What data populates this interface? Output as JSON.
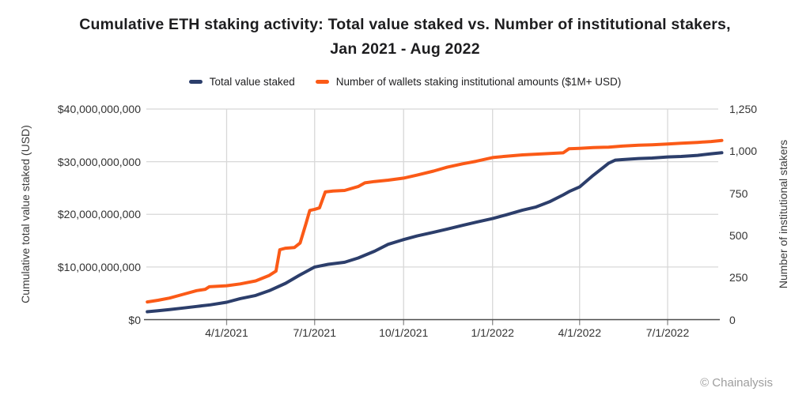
{
  "title": {
    "line1": "Cumulative ETH staking activity: Total value staked vs. Number of institutional stakers,",
    "line2": "Jan 2021 - Aug 2022"
  },
  "legend": {
    "items": [
      {
        "label": "Total value staked",
        "color": "#2c3e6b"
      },
      {
        "label": "Number of wallets staking institutional amounts ($1M+ USD)",
        "color": "#fb5a17"
      }
    ]
  },
  "axes": {
    "left": {
      "title": "Cumulative total value staked (USD)",
      "ticks": [
        {
          "label": "$0",
          "value": 0
        },
        {
          "label": "$10,000,000,000",
          "value": 10000000000
        },
        {
          "label": "$20,000,000,000",
          "value": 20000000000
        },
        {
          "label": "$30,000,000,000",
          "value": 30000000000
        },
        {
          "label": "$40,000,000,000",
          "value": 40000000000
        }
      ]
    },
    "right": {
      "title": "Number of institutional stakers",
      "ticks": [
        {
          "label": "0",
          "value": 0
        },
        {
          "label": "250",
          "value": 250
        },
        {
          "label": "500",
          "value": 500
        },
        {
          "label": "750",
          "value": 750
        },
        {
          "label": "1,000",
          "value": 1000
        },
        {
          "label": "1,250",
          "value": 1250
        }
      ]
    },
    "x": {
      "ticks": [
        {
          "label": "4/1/2021",
          "date": "2021-04-01"
        },
        {
          "label": "7/1/2021",
          "date": "2021-07-01"
        },
        {
          "label": "10/1/2021",
          "date": "2021-10-01"
        },
        {
          "label": "1/1/2022",
          "date": "2022-01-01"
        },
        {
          "label": "4/1/2022",
          "date": "2022-04-01"
        },
        {
          "label": "7/1/2022",
          "date": "2022-07-01"
        }
      ]
    }
  },
  "footer": {
    "attribution": "© Chainalysis"
  },
  "colors": {
    "grid": "#d8d8d8",
    "axis_line": "#4d4d4d",
    "tick_mark": "#8c8c8c"
  },
  "chart_data": {
    "type": "line",
    "title": "Cumulative ETH staking activity: Total value staked vs. Number of institutional stakers, Jan 2021 - Aug 2022",
    "legend_position": "top",
    "grid": true,
    "x_range": [
      "2021-01-09",
      "2022-08-26"
    ],
    "x_tick_labels": [
      "4/1/2021",
      "7/1/2021",
      "10/1/2021",
      "1/1/2022",
      "4/1/2022",
      "7/1/2022"
    ],
    "y_left": {
      "label": "Cumulative total value staked (USD)",
      "range": [
        0,
        40000000000
      ],
      "tick_step": 10000000000
    },
    "y_right": {
      "label": "Number of institutional stakers",
      "range": [
        0,
        1250
      ],
      "tick_step": 250
    },
    "series": [
      {
        "name": "Total value staked",
        "axis": "left",
        "color": "#2c3e6b",
        "units": "USD",
        "points": [
          [
            "2021-01-09",
            1500000000
          ],
          [
            "2021-01-20",
            1700000000
          ],
          [
            "2021-02-01",
            1900000000
          ],
          [
            "2021-02-15",
            2200000000
          ],
          [
            "2021-03-01",
            2500000000
          ],
          [
            "2021-03-15",
            2800000000
          ],
          [
            "2021-04-01",
            3300000000
          ],
          [
            "2021-04-15",
            4000000000
          ],
          [
            "2021-05-01",
            4600000000
          ],
          [
            "2021-05-15",
            5500000000
          ],
          [
            "2021-06-01",
            6900000000
          ],
          [
            "2021-06-15",
            8400000000
          ],
          [
            "2021-07-01",
            10000000000
          ],
          [
            "2021-07-15",
            10500000000
          ],
          [
            "2021-08-01",
            10900000000
          ],
          [
            "2021-08-15",
            11700000000
          ],
          [
            "2021-09-01",
            13000000000
          ],
          [
            "2021-09-15",
            14300000000
          ],
          [
            "2021-10-01",
            15200000000
          ],
          [
            "2021-10-15",
            15900000000
          ],
          [
            "2021-11-01",
            16600000000
          ],
          [
            "2021-11-15",
            17200000000
          ],
          [
            "2021-12-01",
            17900000000
          ],
          [
            "2021-12-15",
            18500000000
          ],
          [
            "2022-01-01",
            19200000000
          ],
          [
            "2022-01-15",
            19900000000
          ],
          [
            "2022-02-01",
            20800000000
          ],
          [
            "2022-02-15",
            21400000000
          ],
          [
            "2022-03-01",
            22400000000
          ],
          [
            "2022-03-15",
            23700000000
          ],
          [
            "2022-03-22",
            24400000000
          ],
          [
            "2022-04-01",
            25200000000
          ],
          [
            "2022-04-15",
            27400000000
          ],
          [
            "2022-05-01",
            29700000000
          ],
          [
            "2022-05-08",
            30300000000
          ],
          [
            "2022-05-15",
            30400000000
          ],
          [
            "2022-06-01",
            30600000000
          ],
          [
            "2022-06-15",
            30700000000
          ],
          [
            "2022-07-01",
            30900000000
          ],
          [
            "2022-07-15",
            31000000000
          ],
          [
            "2022-08-01",
            31200000000
          ],
          [
            "2022-08-15",
            31500000000
          ],
          [
            "2022-08-26",
            31700000000
          ]
        ]
      },
      {
        "name": "Number of wallets staking institutional amounts ($1M+ USD)",
        "axis": "right",
        "color": "#fb5a17",
        "units": "wallets",
        "points": [
          [
            "2021-01-09",
            105
          ],
          [
            "2021-01-20",
            115
          ],
          [
            "2021-02-01",
            128
          ],
          [
            "2021-02-15",
            150
          ],
          [
            "2021-03-01",
            172
          ],
          [
            "2021-03-10",
            180
          ],
          [
            "2021-03-14",
            195
          ],
          [
            "2021-04-01",
            201
          ],
          [
            "2021-04-15",
            212
          ],
          [
            "2021-05-01",
            230
          ],
          [
            "2021-05-15",
            262
          ],
          [
            "2021-05-22",
            288
          ],
          [
            "2021-05-26",
            415
          ],
          [
            "2021-06-01",
            424
          ],
          [
            "2021-06-10",
            428
          ],
          [
            "2021-06-16",
            455
          ],
          [
            "2021-06-22",
            570
          ],
          [
            "2021-06-26",
            648
          ],
          [
            "2021-07-01",
            655
          ],
          [
            "2021-07-06",
            663
          ],
          [
            "2021-07-12",
            758
          ],
          [
            "2021-07-20",
            763
          ],
          [
            "2021-08-01",
            767
          ],
          [
            "2021-08-15",
            790
          ],
          [
            "2021-08-22",
            812
          ],
          [
            "2021-09-01",
            820
          ],
          [
            "2021-09-15",
            828
          ],
          [
            "2021-10-01",
            840
          ],
          [
            "2021-10-15",
            858
          ],
          [
            "2021-11-01",
            882
          ],
          [
            "2021-11-15",
            905
          ],
          [
            "2021-12-01",
            925
          ],
          [
            "2021-12-15",
            940
          ],
          [
            "2022-01-01",
            962
          ],
          [
            "2022-01-15",
            970
          ],
          [
            "2022-02-01",
            978
          ],
          [
            "2022-02-15",
            982
          ],
          [
            "2022-03-01",
            986
          ],
          [
            "2022-03-15",
            990
          ],
          [
            "2022-03-21",
            1014
          ],
          [
            "2022-04-01",
            1017
          ],
          [
            "2022-04-15",
            1021
          ],
          [
            "2022-05-01",
            1024
          ],
          [
            "2022-05-15",
            1030
          ],
          [
            "2022-06-01",
            1035
          ],
          [
            "2022-06-15",
            1038
          ],
          [
            "2022-07-01",
            1042
          ],
          [
            "2022-07-15",
            1047
          ],
          [
            "2022-08-01",
            1052
          ],
          [
            "2022-08-15",
            1057
          ],
          [
            "2022-08-26",
            1064
          ]
        ]
      }
    ]
  }
}
